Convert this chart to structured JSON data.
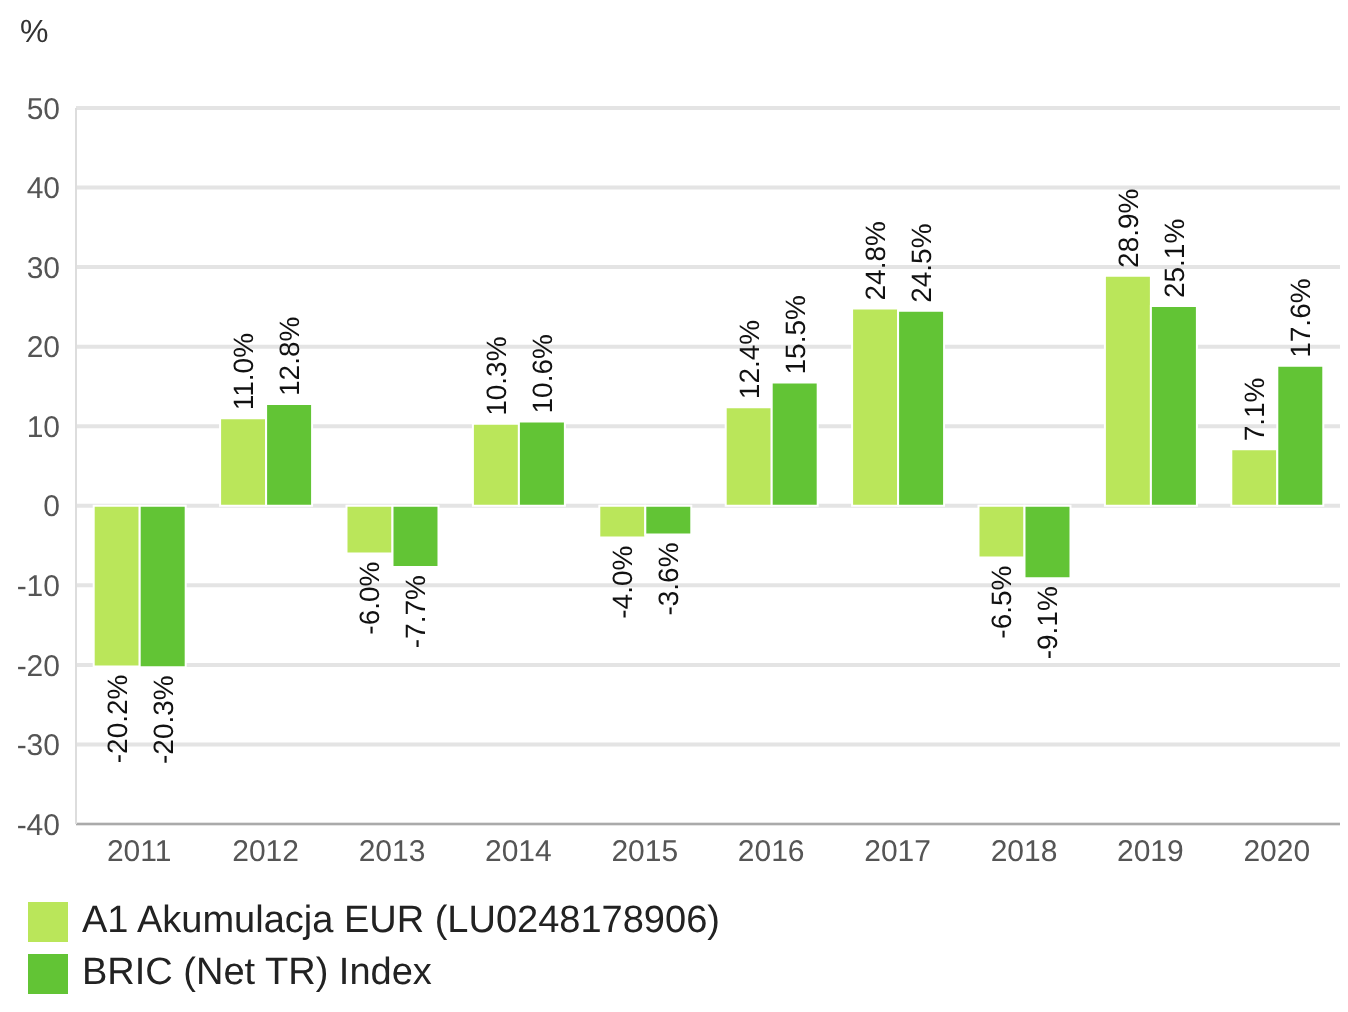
{
  "chart_data": {
    "type": "bar",
    "ylabel": "%",
    "categories": [
      "2011",
      "2012",
      "2013",
      "2014",
      "2015",
      "2016",
      "2017",
      "2018",
      "2019",
      "2020"
    ],
    "series": [
      {
        "name": "A1 Akumulacja EUR (LU0248178906)",
        "color": "#bae65a",
        "values": [
          -20.2,
          11.0,
          -6.0,
          10.3,
          -4.0,
          12.4,
          24.8,
          -6.5,
          28.9,
          7.1
        ],
        "value_labels": [
          "-20.2%",
          "11.0%",
          "-6.0%",
          "10.3%",
          "-4.0%",
          "12.4%",
          "24.8%",
          "-6.5%",
          "28.9%",
          "7.1%"
        ]
      },
      {
        "name": "BRIC (Net TR) Index",
        "color": "#62c435",
        "values": [
          -20.3,
          12.8,
          -7.7,
          10.6,
          -3.6,
          15.5,
          24.5,
          -9.1,
          25.1,
          17.6
        ],
        "value_labels": [
          "-20.3%",
          "12.8%",
          "-7.7%",
          "10.6%",
          "-3.6%",
          "15.5%",
          "24.5%",
          "-9.1%",
          "25.1%",
          "17.6%"
        ]
      }
    ],
    "ylim": [
      -40,
      50
    ],
    "yticks": [
      -40,
      -30,
      -20,
      -10,
      0,
      10,
      20,
      30,
      40,
      50
    ],
    "grid": "y",
    "legend": "bottom"
  }
}
